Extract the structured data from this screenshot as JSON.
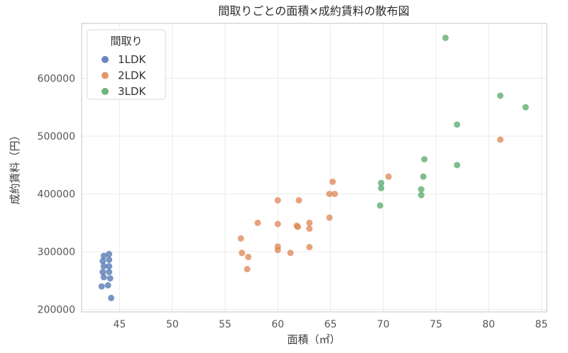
{
  "figure": {
    "title": "間取りごとの面積×成約賃料の散布図"
  },
  "chart_data": {
    "type": "scatter",
    "title": "間取りごとの面積×成約賃料の散布図",
    "xlabel": "面積（㎡）",
    "ylabel": "成約賃料（円）",
    "xlim": [
      41.4,
      85.5
    ],
    "ylim": [
      196000,
      695000
    ],
    "x_ticks": [
      45,
      50,
      55,
      60,
      65,
      70,
      75,
      80,
      85
    ],
    "y_ticks": [
      200000,
      300000,
      400000,
      500000,
      600000
    ],
    "grid": true,
    "grid_color": "#ebebeb",
    "spine_color": "#cfcfcf",
    "marker_alpha": 0.75,
    "marker_radius": 4.5,
    "legend": {
      "title": "間取り",
      "position": "upper-left"
    },
    "series": [
      {
        "name": "1LDK",
        "color": "#4C72B0",
        "points": [
          [
            43.5,
            293000
          ],
          [
            44.0,
            296000
          ],
          [
            43.4,
            284000
          ],
          [
            44.0,
            286000
          ],
          [
            43.5,
            275000
          ],
          [
            44.0,
            275000
          ],
          [
            43.4,
            265000
          ],
          [
            44.0,
            265000
          ],
          [
            43.5,
            256000
          ],
          [
            44.1,
            254000
          ],
          [
            43.3,
            240000
          ],
          [
            43.9,
            242000
          ],
          [
            44.2,
            220000
          ]
        ]
      },
      {
        "name": "2LDK",
        "color": "#DD8452",
        "points": [
          [
            56.5,
            323000
          ],
          [
            56.6,
            298000
          ],
          [
            57.2,
            291000
          ],
          [
            57.1,
            270000
          ],
          [
            58.1,
            350000
          ],
          [
            60.0,
            389000
          ],
          [
            60.0,
            348000
          ],
          [
            60.0,
            309000
          ],
          [
            60.0,
            303000
          ],
          [
            61.2,
            298000
          ],
          [
            61.8,
            345000
          ],
          [
            61.9,
            343000
          ],
          [
            62.0,
            389000
          ],
          [
            63.0,
            350000
          ],
          [
            63.0,
            340000
          ],
          [
            63.0,
            308000
          ],
          [
            64.9,
            400000
          ],
          [
            65.4,
            400000
          ],
          [
            65.2,
            421000
          ],
          [
            64.9,
            359000
          ],
          [
            70.5,
            430000
          ],
          [
            81.1,
            494000
          ]
        ]
      },
      {
        "name": "3LDK",
        "color": "#55A868",
        "points": [
          [
            69.8,
            419000
          ],
          [
            69.8,
            410000
          ],
          [
            69.7,
            380000
          ],
          [
            73.6,
            408000
          ],
          [
            73.6,
            398000
          ],
          [
            73.8,
            430000
          ],
          [
            73.9,
            460000
          ],
          [
            75.9,
            670000
          ],
          [
            77.0,
            520000
          ],
          [
            77.0,
            450000
          ],
          [
            81.1,
            570000
          ],
          [
            83.5,
            550000
          ]
        ]
      }
    ]
  }
}
